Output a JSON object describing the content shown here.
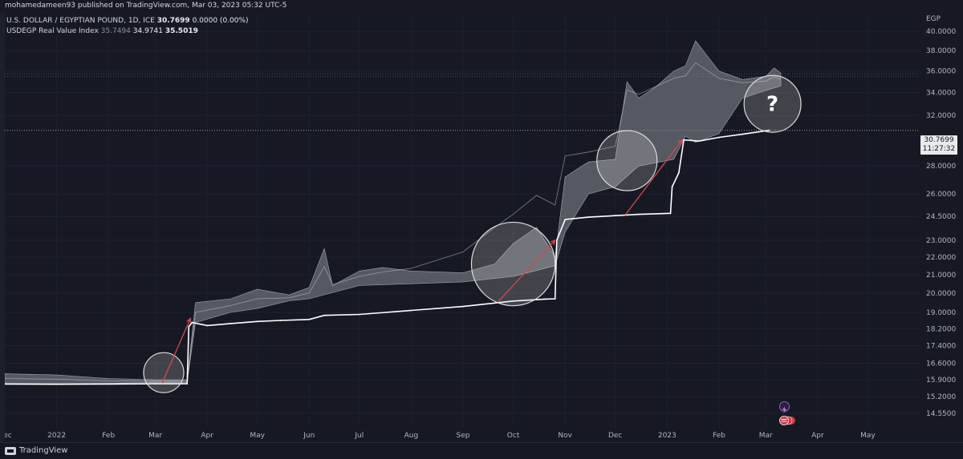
{
  "header": {
    "published": "mohamedameen93 published on TradingView.com, Mar 03, 2023 05:32 UTC-5"
  },
  "legend": {
    "symbol": "U.S. DOLLAR / EGYPTIAN POUND, 1D, ICE",
    "price": "30.7699",
    "change": "0.0000 (0.00%)",
    "indicator_name": "USDEGP Real Value Index",
    "ind_val1": "35.7494",
    "ind_val2": "34.9741",
    "ind_val3": "35.5019"
  },
  "price_axis": {
    "currency": "EGP",
    "current_price": "30.7699",
    "countdown": "11:27:32"
  },
  "question_mark": "?",
  "footer": {
    "brand": "TradingView"
  },
  "colors": {
    "background": "#161923",
    "price_line": "#ffffff",
    "band": "#8b8e96",
    "arrow": "#e0434b",
    "circle": "#dcdcdc"
  },
  "chart_data": {
    "type": "line",
    "title": "U.S. DOLLAR / EGYPTIAN POUND, 1D, ICE",
    "xlabel": "",
    "ylabel": "EGP",
    "log_scale": true,
    "ylim": [
      14.0,
      42.0
    ],
    "y_ticks": [
      "40.0000",
      "38.0000",
      "36.0000",
      "34.0000",
      "32.0000",
      "28.0000",
      "26.0000",
      "24.5000",
      "23.0000",
      "22.0000",
      "21.0000",
      "20.0000",
      "19.0000",
      "18.2000",
      "17.4000",
      "16.6000",
      "15.9000",
      "15.2000",
      "14.5500"
    ],
    "x_ticks": [
      "Dec",
      "2022",
      "Feb",
      "Mar",
      "Apr",
      "May",
      "Jun",
      "Jul",
      "Aug",
      "Sep",
      "Oct",
      "Nov",
      "Dec",
      "2023",
      "Feb",
      "Mar",
      "Apr",
      "May"
    ],
    "x_range": [
      "2021-12-01",
      "2023-06-01"
    ],
    "series": [
      {
        "name": "U.S. DOLLAR / EGYPTIAN POUND",
        "points": [
          [
            "2021-12-01",
            15.72
          ],
          [
            "2022-01-01",
            15.71
          ],
          [
            "2022-02-01",
            15.72
          ],
          [
            "2022-03-01",
            15.73
          ],
          [
            "2022-03-20",
            15.73
          ],
          [
            "2022-03-21",
            18.3
          ],
          [
            "2022-03-23",
            18.5
          ],
          [
            "2022-04-01",
            18.35
          ],
          [
            "2022-04-15",
            18.45
          ],
          [
            "2022-05-01",
            18.55
          ],
          [
            "2022-05-15",
            18.6
          ],
          [
            "2022-06-01",
            18.65
          ],
          [
            "2022-06-10",
            18.85
          ],
          [
            "2022-07-01",
            18.9
          ],
          [
            "2022-08-01",
            19.1
          ],
          [
            "2022-09-01",
            19.3
          ],
          [
            "2022-10-01",
            19.58
          ],
          [
            "2022-10-20",
            19.68
          ],
          [
            "2022-10-26",
            19.7
          ],
          [
            "2022-10-27",
            23.0
          ],
          [
            "2022-11-01",
            24.3
          ],
          [
            "2022-11-15",
            24.45
          ],
          [
            "2022-12-01",
            24.55
          ],
          [
            "2022-12-15",
            24.63
          ],
          [
            "2023-01-03",
            24.7
          ],
          [
            "2023-01-04",
            26.5
          ],
          [
            "2023-01-08",
            27.5
          ],
          [
            "2023-01-11",
            30.0
          ],
          [
            "2023-01-20",
            29.9
          ],
          [
            "2023-02-01",
            30.2
          ],
          [
            "2023-02-15",
            30.45
          ],
          [
            "2023-03-03",
            30.7699
          ]
        ]
      },
      {
        "name": "USDEGP Real Value Index",
        "upper": [
          [
            "2021-12-01",
            16.15
          ],
          [
            "2022-01-01",
            16.1
          ],
          [
            "2022-02-01",
            15.95
          ],
          [
            "2022-03-01",
            15.9
          ],
          [
            "2022-03-20",
            15.9
          ],
          [
            "2022-03-25",
            19.5
          ],
          [
            "2022-04-15",
            19.7
          ],
          [
            "2022-05-01",
            20.2
          ],
          [
            "2022-05-20",
            19.9
          ],
          [
            "2022-06-01",
            20.3
          ],
          [
            "2022-06-10",
            22.5
          ],
          [
            "2022-06-15",
            20.4
          ],
          [
            "2022-07-01",
            21.2
          ],
          [
            "2022-07-15",
            21.4
          ],
          [
            "2022-08-01",
            21.2
          ],
          [
            "2022-09-01",
            21.1
          ],
          [
            "2022-09-20",
            21.6
          ],
          [
            "2022-10-01",
            22.8
          ],
          [
            "2022-10-15",
            23.8
          ],
          [
            "2022-10-26",
            22.0
          ],
          [
            "2022-11-01",
            27.2
          ],
          [
            "2022-11-15",
            28.3
          ],
          [
            "2022-12-01",
            28.5
          ],
          [
            "2022-12-08",
            35.0
          ],
          [
            "2022-12-15",
            33.5
          ],
          [
            "2022-12-25",
            34.5
          ],
          [
            "2023-01-05",
            36.0
          ],
          [
            "2023-01-12",
            36.5
          ],
          [
            "2023-01-18",
            39.0
          ],
          [
            "2023-02-01",
            36.0
          ],
          [
            "2023-02-15",
            35.2
          ],
          [
            "2023-03-01",
            35.5
          ],
          [
            "2023-03-06",
            36.3
          ],
          [
            "2023-03-10",
            35.8
          ]
        ],
        "lower": [
          [
            "2021-12-01",
            15.75
          ],
          [
            "2022-01-01",
            15.75
          ],
          [
            "2022-02-01",
            15.75
          ],
          [
            "2022-03-01",
            15.78
          ],
          [
            "2022-03-20",
            15.78
          ],
          [
            "2022-03-25",
            18.5
          ],
          [
            "2022-04-15",
            19.0
          ],
          [
            "2022-05-01",
            19.2
          ],
          [
            "2022-05-20",
            19.6
          ],
          [
            "2022-06-01",
            19.7
          ],
          [
            "2022-07-01",
            20.4
          ],
          [
            "2022-08-01",
            20.5
          ],
          [
            "2022-09-01",
            20.6
          ],
          [
            "2022-10-01",
            20.9
          ],
          [
            "2022-10-26",
            21.5
          ],
          [
            "2022-11-01",
            23.5
          ],
          [
            "2022-11-15",
            26.0
          ],
          [
            "2022-12-01",
            26.5
          ],
          [
            "2022-12-15",
            28.0
          ],
          [
            "2023-01-05",
            28.5
          ],
          [
            "2023-01-12",
            30.3
          ],
          [
            "2023-01-18",
            29.8
          ],
          [
            "2023-02-01",
            30.5
          ],
          [
            "2023-02-15",
            33.5
          ],
          [
            "2023-03-01",
            34.2
          ],
          [
            "2023-03-10",
            34.6
          ]
        ]
      }
    ],
    "annotations": {
      "circles": [
        {
          "date": "2022-03-06",
          "price": 16.2,
          "radius_days": 12
        },
        {
          "date": "2022-10-01",
          "price": 21.6,
          "radius_days": 25
        },
        {
          "date": "2022-12-08",
          "price": 28.4,
          "radius_days": 18
        },
        {
          "date": "2023-03-05",
          "price": 33.0,
          "radius_days": 17,
          "label": "?"
        }
      ],
      "arrows": [
        {
          "from": [
            "2022-03-05",
            15.75
          ],
          "to": [
            "2022-03-22",
            18.7
          ]
        },
        {
          "from": [
            "2022-09-22",
            19.55
          ],
          "to": [
            "2022-10-26",
            23.0
          ]
        },
        {
          "from": [
            "2022-12-07",
            24.6
          ],
          "to": [
            "2023-01-10",
            30.0
          ]
        }
      ],
      "horizontal_line": 30.7699
    }
  }
}
